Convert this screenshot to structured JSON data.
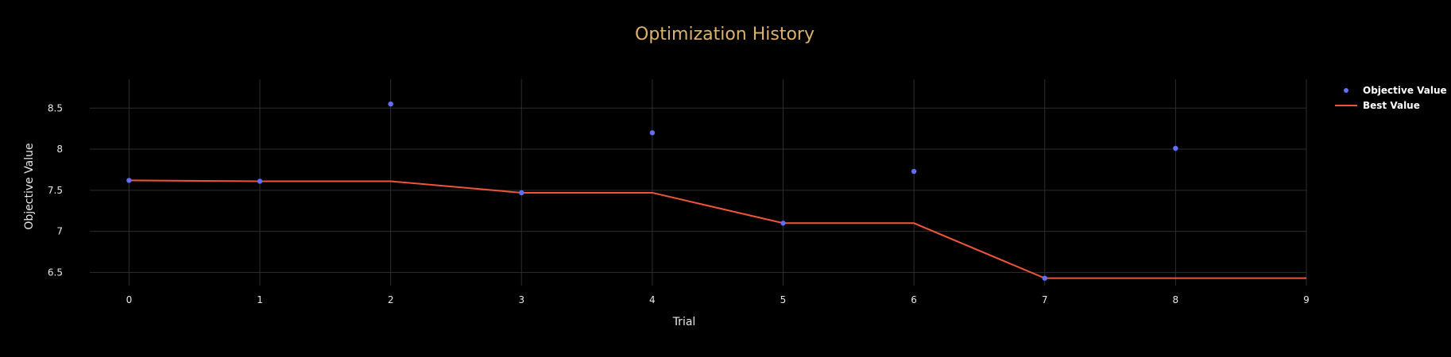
{
  "chart_data": {
    "type": "line",
    "title": "Optimization History",
    "xlabel": "Trial",
    "ylabel": "Objective Value",
    "xlim": [
      -0.3,
      9
    ],
    "ylim": [
      6.34,
      8.85
    ],
    "x_ticks": [
      0,
      1,
      2,
      3,
      4,
      5,
      6,
      7,
      8,
      9
    ],
    "y_ticks": [
      6.5,
      7,
      7.5,
      8,
      8.5
    ],
    "y_tick_labels": [
      "6.5",
      "7",
      "7.5",
      "8",
      "8.5"
    ],
    "grid": true,
    "legend_position": "top-right",
    "series": [
      {
        "name": "Objective Value",
        "kind": "scatter",
        "color": "#636efa",
        "x": [
          0,
          1,
          2,
          3,
          4,
          5,
          6,
          7,
          8
        ],
        "y": [
          7.62,
          7.61,
          8.55,
          7.47,
          8.2,
          7.1,
          7.73,
          6.43,
          8.01
        ]
      },
      {
        "name": "Best Value",
        "kind": "line",
        "color": "#ef553b",
        "x": [
          0,
          1,
          2,
          3,
          4,
          5,
          6,
          7,
          8,
          9
        ],
        "y": [
          7.62,
          7.61,
          7.61,
          7.47,
          7.47,
          7.1,
          7.1,
          6.43,
          6.43,
          6.43
        ]
      }
    ]
  }
}
